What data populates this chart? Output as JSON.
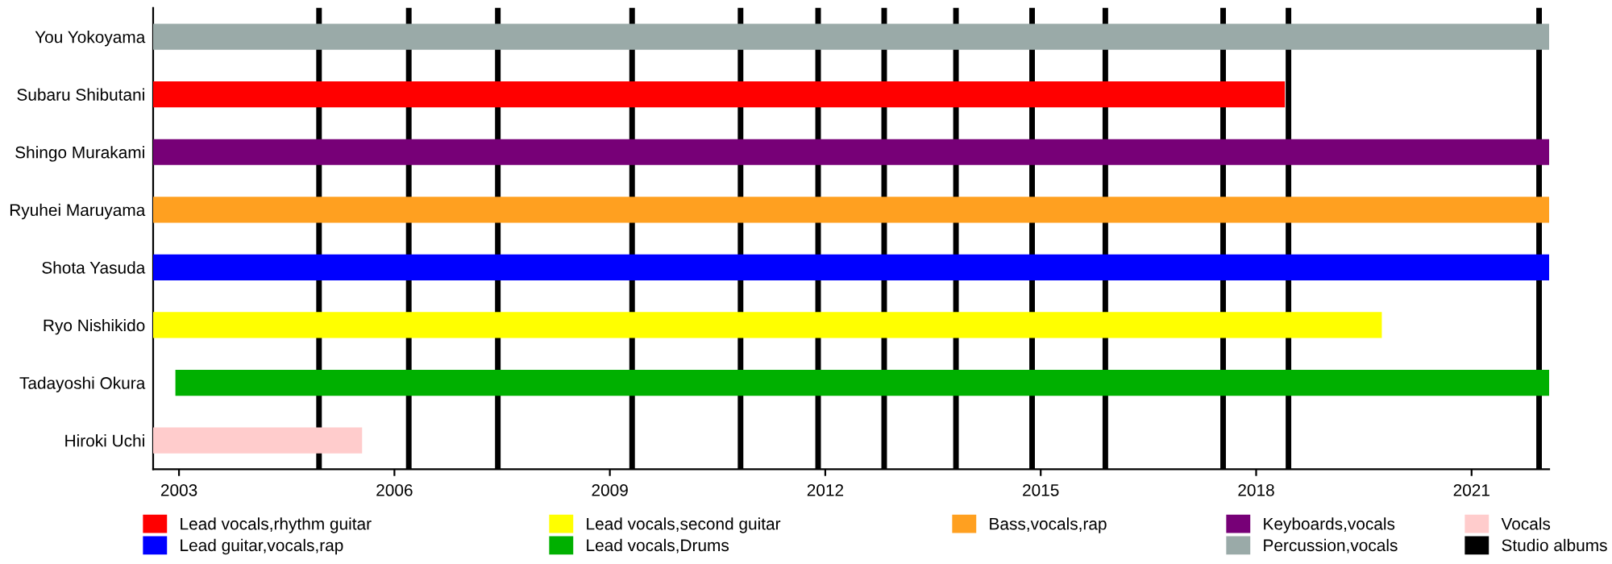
{
  "chart_data": {
    "type": "bar",
    "orientation": "horizontal",
    "categories": [
      "You Yokoyama",
      "Subaru Shibutani",
      "Shingo Murakami",
      "Ryuhei Maruyama",
      "Shota Yasuda",
      "Ryo Nishikido",
      "Tadayoshi Okura",
      "Hiroki Uchi"
    ],
    "series": [
      {
        "name": "Lead vocals,rhythm guitar",
        "color": "#ff0000",
        "values": [
          null,
          15.76,
          null,
          null,
          null,
          null,
          null,
          null
        ],
        "base": [
          null,
          2002.64,
          null,
          null,
          null,
          null,
          null,
          null
        ]
      },
      {
        "name": "Lead guitar,vocals,rap",
        "color": "#0000ff",
        "values": [
          null,
          null,
          null,
          null,
          19.44,
          null,
          null,
          null
        ],
        "base": [
          null,
          null,
          null,
          null,
          2002.64,
          null,
          null,
          null
        ]
      },
      {
        "name": "Lead vocals,second guitar",
        "color": "#ffff00",
        "values": [
          null,
          null,
          null,
          null,
          null,
          17.11,
          null,
          null
        ],
        "base": [
          null,
          null,
          null,
          null,
          null,
          2002.64,
          null,
          null
        ]
      },
      {
        "name": "Lead vocals,Drums",
        "color": "#00b000",
        "values": [
          null,
          null,
          null,
          null,
          null,
          null,
          19.13,
          null
        ],
        "base": [
          null,
          null,
          null,
          null,
          null,
          null,
          2002.95,
          null
        ]
      },
      {
        "name": "Bass,vocals,rap",
        "color": "#ffa020",
        "values": [
          null,
          null,
          null,
          19.44,
          null,
          null,
          null,
          null
        ],
        "base": [
          null,
          null,
          null,
          2002.64,
          null,
          null,
          null,
          null
        ]
      },
      {
        "name": "Keyboards,vocals",
        "color": "#770077",
        "values": [
          null,
          null,
          19.44,
          null,
          null,
          null,
          null,
          null
        ],
        "base": [
          null,
          null,
          2002.64,
          null,
          null,
          null,
          null,
          null
        ]
      },
      {
        "name": "Percussion,vocals",
        "color": "#9aaaa8",
        "values": [
          19.44,
          null,
          null,
          null,
          null,
          null,
          null,
          null
        ],
        "base": [
          2002.64,
          null,
          null,
          null,
          null,
          null,
          null,
          null
        ]
      },
      {
        "name": "Vocals",
        "color": "#ffcccc",
        "values": [
          null,
          null,
          null,
          null,
          null,
          null,
          null,
          2.91
        ],
        "base": [
          null,
          null,
          null,
          null,
          null,
          null,
          null,
          2002.64
        ]
      }
    ],
    "ref_lines": [
      {
        "axis": "x",
        "value": 2004.95,
        "label": "Studio albums",
        "color": "#000000"
      },
      {
        "axis": "x",
        "value": 2006.2,
        "color": "#000000"
      },
      {
        "axis": "x",
        "value": 2007.44,
        "color": "#000000"
      },
      {
        "axis": "x",
        "value": 2009.31,
        "color": "#000000"
      },
      {
        "axis": "x",
        "value": 2010.82,
        "color": "#000000"
      },
      {
        "axis": "x",
        "value": 2011.9,
        "color": "#000000"
      },
      {
        "axis": "x",
        "value": 2012.82,
        "color": "#000000"
      },
      {
        "axis": "x",
        "value": 2013.82,
        "color": "#000000"
      },
      {
        "axis": "x",
        "value": 2014.88,
        "color": "#000000"
      },
      {
        "axis": "x",
        "value": 2015.9,
        "color": "#000000"
      },
      {
        "axis": "x",
        "value": 2017.54,
        "color": "#000000"
      },
      {
        "axis": "x",
        "value": 2018.45,
        "color": "#000000"
      },
      {
        "axis": "x",
        "value": 2021.94,
        "color": "#000000"
      }
    ],
    "xlim": [
      2002.64,
      2022.08
    ],
    "xticks": [
      2003,
      2006,
      2009,
      2012,
      2015,
      2018,
      2021
    ],
    "grid": false,
    "legend": "bottom"
  }
}
